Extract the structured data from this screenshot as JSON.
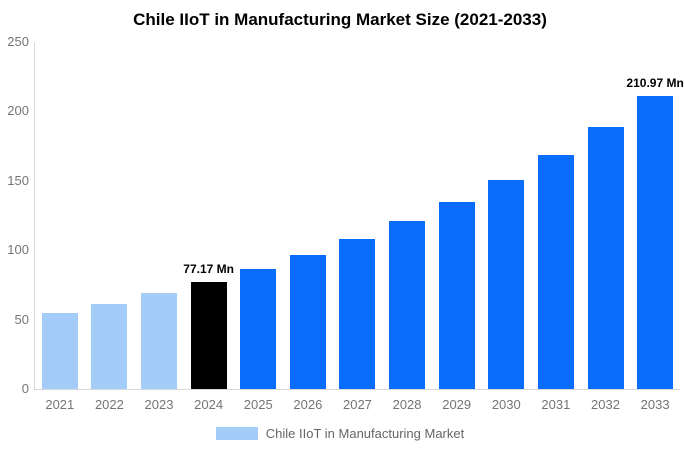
{
  "title": "Chile IIoT in Manufacturing Market Size (2021-2033)",
  "colors": {
    "light_blue": "#A4CCF8",
    "highlight_black": "#000000",
    "bright_blue": "#0A6CFB",
    "axis_text": "#757575",
    "axis_line": "#d9d9d9",
    "title_text": "#000000",
    "legend_text": "#666666"
  },
  "chart_data": {
    "type": "bar",
    "title": "Chile IIoT in Manufacturing Market Size (2021-2033)",
    "categories": [
      "2021",
      "2022",
      "2023",
      "2024",
      "2025",
      "2026",
      "2027",
      "2028",
      "2029",
      "2030",
      "2031",
      "2032",
      "2033"
    ],
    "values": [
      55.0,
      61.6,
      69.0,
      77.17,
      86.3,
      96.5,
      107.9,
      120.7,
      134.9,
      150.9,
      168.8,
      188.7,
      210.97
    ],
    "bar_colors": [
      "#A4CCF8",
      "#A4CCF8",
      "#A4CCF8",
      "#000000",
      "#0A6CFB",
      "#0A6CFB",
      "#0A6CFB",
      "#0A6CFB",
      "#0A6CFB",
      "#0A6CFB",
      "#0A6CFB",
      "#0A6CFB",
      "#0A6CFB"
    ],
    "value_labels": {
      "2024": "77.17 Mn",
      "2033": "210.97 Mn"
    },
    "xlabel": "",
    "ylabel": "",
    "ylim": [
      0,
      250
    ],
    "yticks": [
      0,
      50,
      100,
      150,
      200,
      250
    ],
    "grid": false,
    "legend": {
      "label": "Chile IIoT in Manufacturing Market",
      "position": "bottom",
      "swatch_color": "#A4CCF8"
    }
  }
}
